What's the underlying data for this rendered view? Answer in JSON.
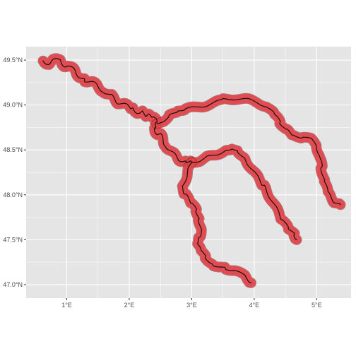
{
  "map": {
    "type": "line-map",
    "background_color": "#e5e5e5",
    "buffer_color": "#e8454a",
    "buffer_outline_color": "#8b2a2e",
    "line_color": "#1a0f10",
    "x_ticks": [
      {
        "value": 1,
        "label": "1°E"
      },
      {
        "value": 2,
        "label": "2°E"
      },
      {
        "value": 3,
        "label": "3°E"
      },
      {
        "value": 4,
        "label": "4°E"
      },
      {
        "value": 5,
        "label": "5°E"
      }
    ],
    "y_ticks": [
      {
        "value": 47.0,
        "label": "47.0°N"
      },
      {
        "value": 47.5,
        "label": "47.5°N"
      },
      {
        "value": 48.0,
        "label": "48.0°N"
      },
      {
        "value": 48.5,
        "label": "48.5°N"
      },
      {
        "value": 49.0,
        "label": "49.0°N"
      },
      {
        "value": 49.5,
        "label": "49.5°N"
      }
    ],
    "xlim": [
      0.35,
      5.55
    ],
    "ylim": [
      46.85,
      49.65
    ],
    "grid": true,
    "rivers": [
      {
        "id": "main-stem",
        "points": [
          [
            0.62,
            49.49
          ],
          [
            0.7,
            49.47
          ],
          [
            0.78,
            49.5
          ],
          [
            0.88,
            49.49
          ],
          [
            0.95,
            49.45
          ],
          [
            1.02,
            49.44
          ],
          [
            1.08,
            49.4
          ],
          [
            1.15,
            49.36
          ],
          [
            1.22,
            49.32
          ],
          [
            1.3,
            49.28
          ],
          [
            1.4,
            49.25
          ],
          [
            1.5,
            49.2
          ],
          [
            1.6,
            49.16
          ],
          [
            1.7,
            49.1
          ],
          [
            1.78,
            49.06
          ],
          [
            1.85,
            49.02
          ],
          [
            1.95,
            48.99
          ],
          [
            2.05,
            48.96
          ],
          [
            2.12,
            48.93
          ],
          [
            2.2,
            48.92
          ],
          [
            2.3,
            48.88
          ],
          [
            2.38,
            48.86
          ],
          [
            2.44,
            48.79
          ],
          [
            2.4,
            48.74
          ],
          [
            2.48,
            48.67
          ],
          [
            2.55,
            48.6
          ],
          [
            2.62,
            48.53
          ],
          [
            2.7,
            48.45
          ],
          [
            2.8,
            48.4
          ],
          [
            2.92,
            48.37
          ],
          [
            3.0,
            48.36
          ]
        ]
      },
      {
        "id": "north-branch",
        "points": [
          [
            2.44,
            48.79
          ],
          [
            2.55,
            48.83
          ],
          [
            2.65,
            48.88
          ],
          [
            2.78,
            48.93
          ],
          [
            2.9,
            48.96
          ],
          [
            3.05,
            48.97
          ],
          [
            3.2,
            48.99
          ],
          [
            3.35,
            49.02
          ],
          [
            3.5,
            49.06
          ],
          [
            3.7,
            49.07
          ],
          [
            3.9,
            49.06
          ],
          [
            4.05,
            49.03
          ],
          [
            4.2,
            48.98
          ],
          [
            4.32,
            48.9
          ],
          [
            4.42,
            48.8
          ],
          [
            4.52,
            48.72
          ],
          [
            4.62,
            48.66
          ],
          [
            4.78,
            48.64
          ],
          [
            4.9,
            48.62
          ],
          [
            5.0,
            48.55
          ],
          [
            5.05,
            48.42
          ],
          [
            5.08,
            48.3
          ],
          [
            5.12,
            48.15
          ],
          [
            5.18,
            48.02
          ],
          [
            5.28,
            47.92
          ],
          [
            5.38,
            47.89
          ]
        ]
      },
      {
        "id": "east-branch",
        "points": [
          [
            3.0,
            48.36
          ],
          [
            3.12,
            48.38
          ],
          [
            3.25,
            48.42
          ],
          [
            3.4,
            48.45
          ],
          [
            3.55,
            48.5
          ],
          [
            3.65,
            48.52
          ],
          [
            3.75,
            48.48
          ],
          [
            3.85,
            48.4
          ],
          [
            3.95,
            48.3
          ],
          [
            4.05,
            48.2
          ],
          [
            4.15,
            48.1
          ],
          [
            4.25,
            47.98
          ],
          [
            4.35,
            47.85
          ],
          [
            4.45,
            47.72
          ],
          [
            4.55,
            47.62
          ],
          [
            4.65,
            47.55
          ],
          [
            4.68,
            47.5
          ]
        ]
      },
      {
        "id": "south-branch",
        "points": [
          [
            3.0,
            48.36
          ],
          [
            2.95,
            48.28
          ],
          [
            2.9,
            48.18
          ],
          [
            2.85,
            48.08
          ],
          [
            2.9,
            48.0
          ],
          [
            3.0,
            47.9
          ],
          [
            3.08,
            47.82
          ],
          [
            3.12,
            47.72
          ],
          [
            3.15,
            47.62
          ],
          [
            3.12,
            47.52
          ],
          [
            3.08,
            47.45
          ],
          [
            3.15,
            47.38
          ],
          [
            3.22,
            47.3
          ],
          [
            3.35,
            47.22
          ],
          [
            3.55,
            47.18
          ],
          [
            3.7,
            47.15
          ],
          [
            3.85,
            47.1
          ],
          [
            3.95,
            47.02
          ]
        ]
      }
    ]
  }
}
